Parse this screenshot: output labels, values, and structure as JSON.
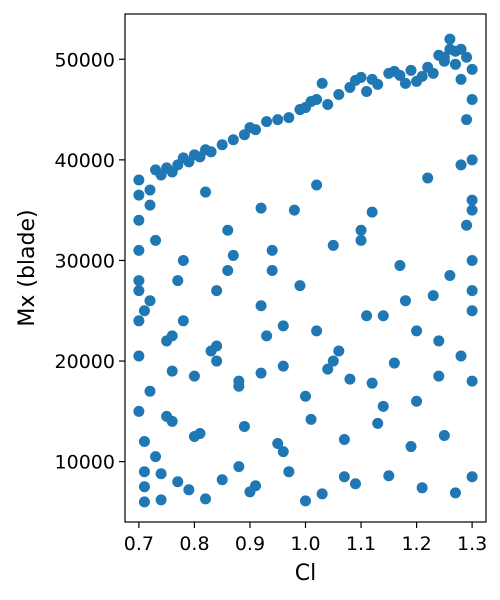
{
  "chart_data": {
    "type": "scatter",
    "xlabel": "Cl",
    "ylabel": "Mx (blade)",
    "xlim": [
      0.675,
      1.325
    ],
    "ylim": [
      4000,
      54500
    ],
    "xticks": [
      0.7,
      0.8,
      0.9,
      1.0,
      1.1,
      1.2,
      1.3
    ],
    "xtick_labels": [
      "0.7",
      "0.8",
      "0.9",
      "1.0",
      "1.1",
      "1.2",
      "1.3"
    ],
    "yticks": [
      10000,
      20000,
      30000,
      40000,
      50000
    ],
    "ytick_labels": [
      "10000",
      "20000",
      "30000",
      "40000",
      "50000"
    ],
    "grid": false,
    "legend": "none",
    "marker_color": "#1f77b4",
    "series": [
      {
        "x": [
          0.7,
          0.7,
          0.7,
          0.7,
          0.7,
          0.7,
          0.7,
          0.7,
          0.71,
          0.71,
          0.71,
          0.71,
          0.72,
          0.72,
          0.73,
          0.73,
          0.74,
          0.74,
          0.75,
          0.75,
          0.76,
          0.76,
          0.77,
          0.77,
          0.78,
          0.78,
          0.79,
          0.8,
          0.8,
          0.81,
          0.82,
          0.82,
          0.83,
          0.84,
          0.85,
          0.86,
          0.87,
          0.88,
          0.88,
          0.89,
          0.9,
          0.9,
          0.91,
          0.92,
          0.93,
          0.94,
          0.95,
          0.96,
          0.97,
          0.98,
          0.99,
          1.0,
          1.0,
          1.01,
          1.02,
          1.03,
          1.04,
          1.05,
          1.06,
          1.07,
          1.08,
          1.09,
          1.1,
          1.1,
          1.11,
          1.12,
          1.13,
          1.14,
          1.15,
          1.16,
          1.17,
          1.18,
          1.19,
          1.2,
          1.2,
          1.21,
          1.22,
          1.23,
          1.24,
          1.25,
          1.25,
          1.26,
          1.26,
          1.27,
          1.27,
          1.28,
          1.28,
          1.29,
          1.29,
          1.3,
          1.3,
          1.3,
          1.3,
          1.3,
          1.3,
          1.3,
          1.3,
          0.72,
          0.76,
          0.8,
          0.84,
          0.88,
          0.92,
          0.96,
          1.0,
          1.04,
          1.08,
          1.12,
          1.16,
          1.2,
          1.24,
          1.28,
          0.74,
          0.79,
          0.85,
          0.91,
          0.97,
          1.03,
          1.09,
          1.15,
          1.21,
          1.27,
          0.71,
          0.73,
          0.77,
          0.83,
          0.87,
          0.93,
          0.99,
          1.05,
          1.11,
          1.17,
          1.23,
          1.29,
          0.75,
          0.81,
          0.89,
          0.95,
          1.01,
          1.07,
          1.13,
          1.19,
          1.25,
          0.7,
          0.78,
          0.86,
          0.94,
          1.02,
          1.1,
          1.18,
          1.26,
          1.3,
          0.72,
          0.82,
          0.92,
          1.02,
          1.12,
          1.22,
          1.28,
          0.76,
          0.84,
          0.96,
          1.06,
          1.14,
          1.24,
          1.3
        ],
        "y": [
          38000,
          36500,
          34000,
          31000,
          28000,
          24000,
          20500,
          15000,
          12000,
          9000,
          7500,
          6000,
          37000,
          26000,
          39000,
          10500,
          38500,
          6200,
          39200,
          22000,
          38800,
          14000,
          39500,
          8000,
          40200,
          30000,
          39800,
          40500,
          12500,
          40300,
          41000,
          6300,
          40800,
          27000,
          41500,
          33000,
          42000,
          9500,
          18000,
          42500,
          43200,
          7000,
          43000,
          25500,
          43800,
          29000,
          44000,
          11000,
          44200,
          35000,
          45000,
          45200,
          6100,
          45800,
          46000,
          47600,
          45500,
          20000,
          46500,
          8500,
          47200,
          47900,
          48200,
          32000,
          46800,
          48000,
          47500,
          15500,
          48600,
          48800,
          48400,
          47600,
          48900,
          47800,
          23000,
          48300,
          49200,
          48600,
          50400,
          49800,
          50200,
          52000,
          51000,
          50800,
          49500,
          51000,
          48000,
          50200,
          44000,
          49000,
          46000,
          40000,
          35000,
          30000,
          25000,
          18000,
          8500,
          17000,
          19000,
          18500,
          20000,
          17500,
          18800,
          19500,
          16500,
          19200,
          18200,
          17800,
          19800,
          16000,
          18500,
          20500,
          8800,
          7200,
          8200,
          7600,
          9000,
          6800,
          7800,
          8600,
          7400,
          6900,
          25000,
          32000,
          28000,
          21000,
          30500,
          22500,
          27500,
          31500,
          24500,
          29500,
          26500,
          33500,
          14500,
          12800,
          13500,
          11800,
          14200,
          12200,
          13800,
          11500,
          12600,
          27000,
          24000,
          29000,
          31000,
          23000,
          33000,
          26000,
          28500,
          36000,
          35500,
          36800,
          35200,
          37500,
          34800,
          38200,
          39500,
          22500,
          21500,
          23500,
          21000,
          24500,
          22000,
          27000
        ]
      }
    ]
  }
}
